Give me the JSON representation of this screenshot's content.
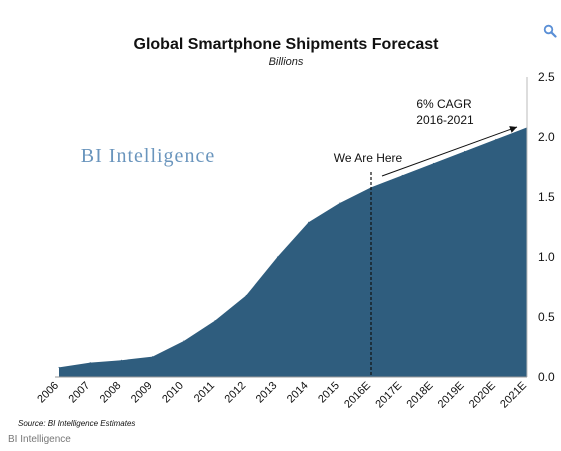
{
  "chart_data": {
    "type": "area",
    "title": "Global Smartphone Shipments Forecast",
    "subtitle": "Billions",
    "categories": [
      "2006",
      "2007",
      "2008",
      "2009",
      "2010",
      "2011",
      "2012",
      "2013",
      "2014",
      "2015",
      "2016E",
      "2017E",
      "2018E",
      "2019E",
      "2020E",
      "2021E"
    ],
    "series": [
      {
        "values": [
          0.08,
          0.12,
          0.14,
          0.17,
          0.3,
          0.47,
          0.68,
          1.0,
          1.29,
          1.45,
          1.58,
          1.68,
          1.78,
          1.88,
          1.98,
          2.08
        ]
      }
    ],
    "ylim": [
      0,
      2.5
    ],
    "yticks": [
      "0.0",
      "0.5",
      "1.0",
      "1.5",
      "2.0",
      "2.5"
    ],
    "y_axis_side": "right",
    "grid": false,
    "fill_color": "#2f5d7e",
    "annotations": {
      "marker_label": "We Are Here",
      "marker_category": "2016E",
      "cagr_line1": "6% CAGR",
      "cagr_line2": "2016-2021"
    },
    "watermark": "BI Intelligence",
    "source": "Source: BI Intelligence Estimates"
  },
  "footer": {
    "credit": "BI Intelligence"
  },
  "icons": {
    "zoom": "zoom-icon"
  }
}
